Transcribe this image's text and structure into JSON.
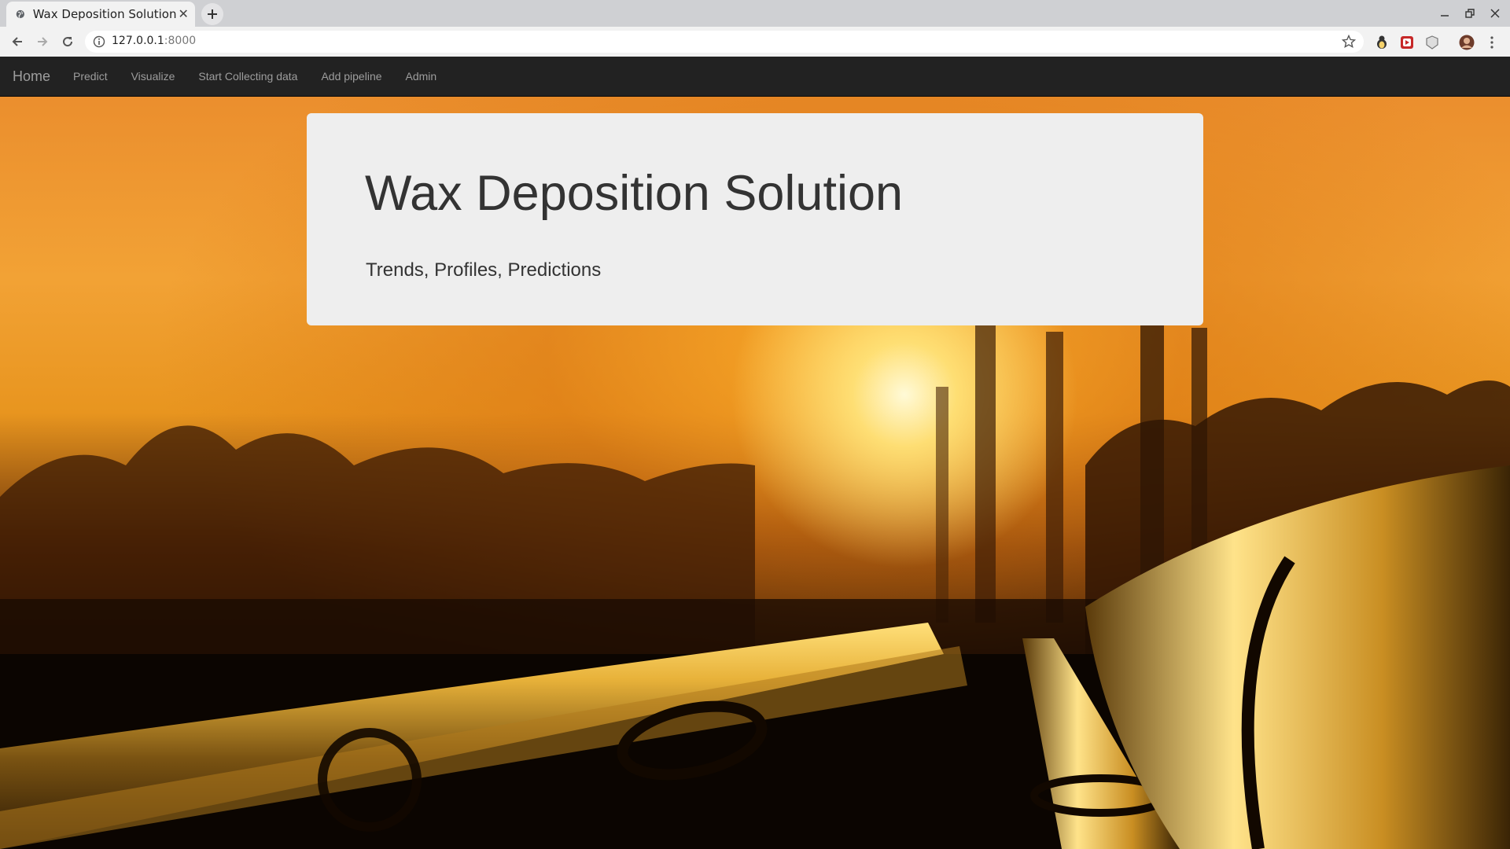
{
  "browser": {
    "tab_title": "Wax Deposition Solution",
    "url_host": "127.0.0.1",
    "url_port": ":8000"
  },
  "navbar": {
    "brand": "Home",
    "items": [
      "Predict",
      "Visualize",
      "Start Collecting data",
      "Add pipeline",
      "Admin"
    ]
  },
  "jumbotron": {
    "heading": "Wax Deposition Solution",
    "subtitle": "Trends, Profiles, Predictions"
  },
  "background": {
    "scene": "pipelines-sunset-photo",
    "accent": "#f2a235"
  }
}
